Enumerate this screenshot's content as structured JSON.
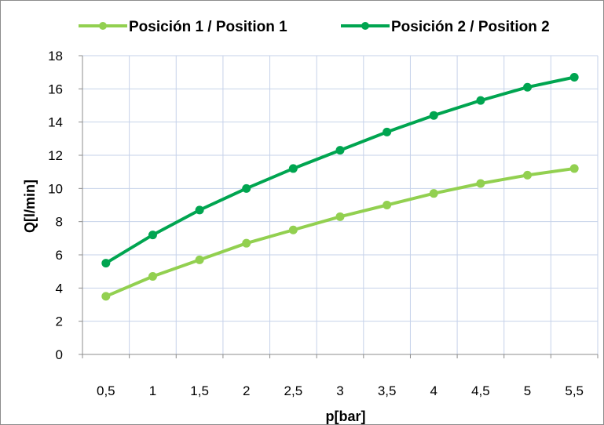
{
  "chart_data": {
    "type": "line",
    "x": [
      "0,5",
      "1",
      "1,5",
      "2",
      "2,5",
      "3",
      "3,5",
      "4",
      "4,5",
      "5",
      "5,5"
    ],
    "series": [
      {
        "name": "Posición 1  / Position 1",
        "color": "#92d050",
        "values": [
          3.5,
          4.7,
          5.7,
          6.7,
          7.5,
          8.3,
          9.0,
          9.7,
          10.3,
          10.8,
          11.2
        ]
      },
      {
        "name": "Posición 2 / Position 2",
        "color": "#00a550",
        "values": [
          5.5,
          7.2,
          8.7,
          10.0,
          11.2,
          12.3,
          13.4,
          14.4,
          15.3,
          16.1,
          16.7
        ]
      }
    ],
    "xlabel": "p[bar]",
    "ylabel": "Q[l/min]",
    "ylim": [
      0,
      18
    ],
    "yticks": [
      "0",
      "2",
      "4",
      "6",
      "8",
      "10",
      "12",
      "14",
      "16",
      "18"
    ],
    "grid": true,
    "legend_position": "top"
  }
}
